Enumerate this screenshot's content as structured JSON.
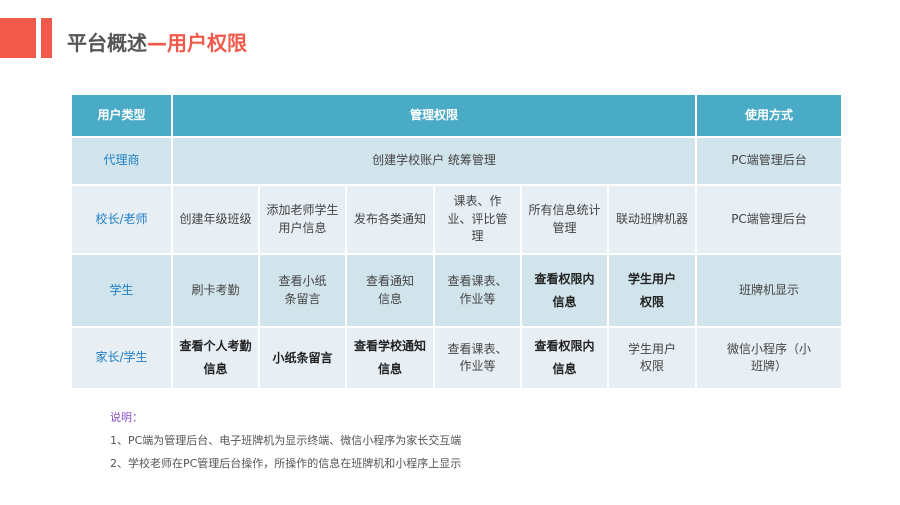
{
  "header": {
    "title_main": "平台概述",
    "title_dash": "—",
    "title_highlight": "用户权限"
  },
  "colors": {
    "accent": "#f15a4a",
    "header_bg": "#4aabc6",
    "row_dark": "#d1e4eb",
    "row_light": "#e7eef4",
    "user_type_text": "#1e7fc6"
  },
  "table": {
    "headers": [
      "用户类型",
      "管理权限",
      "使用方式"
    ],
    "rows": [
      {
        "type": "代理商",
        "permissions": [
          "创建学校账户 统筹管理"
        ],
        "usage": "PC端管理后台"
      },
      {
        "type": "校长/老师",
        "permissions": [
          "创建年级班级",
          "添加老师学生用户信息",
          "发布各类通知",
          "课表、作业、评比管理",
          "所有信息统计管理",
          "联动班牌机器"
        ],
        "usage": "PC端管理后台"
      },
      {
        "type": "学生",
        "permissions": [
          "刷卡考勤",
          "查看小纸条留言",
          "查看通知信息",
          "查看课表、作业等",
          "查看权限内信息",
          "学生用户权限"
        ],
        "usage": "班牌机显示"
      },
      {
        "type": "家长/学生",
        "permissions": [
          "查看个人考勤信息",
          "小纸条留言",
          "查看学校通知信息",
          "查看课表、作业等",
          "查看权限内信息",
          "学生用户权限"
        ],
        "usage": "微信小程序（小班牌）"
      }
    ]
  },
  "notes": {
    "label": "说明：",
    "items": [
      "1、PC端为管理后台、电子班牌机为显示终端、微信小程序为家长交互端",
      "2、学校老师在PC管理后台操作，所操作的信息在班牌机和小程序上显示"
    ]
  }
}
